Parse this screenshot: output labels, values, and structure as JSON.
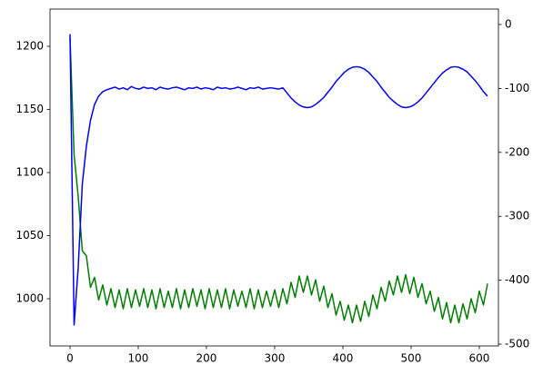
{
  "chart_data": {
    "type": "line",
    "x": [
      0,
      6,
      12,
      18,
      24,
      30,
      36,
      42,
      48,
      54,
      60,
      66,
      72,
      78,
      84,
      90,
      96,
      102,
      108,
      114,
      120,
      126,
      132,
      138,
      144,
      150,
      156,
      162,
      168,
      174,
      180,
      186,
      192,
      198,
      204,
      210,
      216,
      222,
      228,
      234,
      240,
      246,
      252,
      258,
      264,
      270,
      276,
      282,
      288,
      294,
      300,
      306,
      312,
      318,
      324,
      330,
      336,
      342,
      348,
      354,
      360,
      366,
      372,
      378,
      384,
      390,
      396,
      402,
      408,
      414,
      420,
      426,
      432,
      438,
      444,
      450,
      456,
      462,
      468,
      474,
      480,
      486,
      492,
      498,
      504,
      510,
      516,
      522,
      528,
      534,
      540,
      546,
      552,
      558,
      564,
      570,
      576,
      582,
      588,
      594,
      600,
      606,
      612
    ],
    "series": [
      {
        "name": "green",
        "color": "#008000",
        "axis": "y",
        "values": [
          1207,
          1114,
          1081,
          1038,
          1034,
          1009,
          1017,
          999,
          1011,
          995,
          1008,
          993,
          1007,
          992,
          1008,
          993,
          1007,
          994,
          1008,
          993,
          1007,
          992,
          1008,
          993,
          1006,
          993,
          1008,
          992,
          1007,
          993,
          1008,
          994,
          1007,
          992,
          1008,
          993,
          1007,
          993,
          1008,
          992,
          1007,
          994,
          1006,
          993,
          1008,
          992,
          1007,
          993,
          1006,
          994,
          1007,
          993,
          1008,
          996,
          1013,
          1001,
          1018,
          1005,
          1018,
          1003,
          1015,
          998,
          1010,
          993,
          1004,
          987,
          998,
          983,
          995,
          981,
          995,
          982,
          998,
          986,
          1003,
          992,
          1009,
          998,
          1014,
          1003,
          1018,
          1005,
          1019,
          1004,
          1017,
          1001,
          1012,
          996,
          1006,
          990,
          1001,
          984,
          997,
          981,
          995,
          981,
          996,
          984,
          1000,
          989,
          1006,
          995,
          1012
        ]
      },
      {
        "name": "blue",
        "color": "#0000ff",
        "axis": "y2",
        "values": [
          -15,
          -470,
          -380,
          -250,
          -190,
          -150,
          -125,
          -112,
          -105,
          -102,
          -100,
          -98,
          -101,
          -99,
          -102,
          -97,
          -100,
          -101,
          -98,
          -100,
          -99,
          -102,
          -98,
          -100,
          -101,
          -99,
          -98,
          -100,
          -102,
          -99,
          -100,
          -98,
          -101,
          -99,
          -100,
          -102,
          -98,
          -100,
          -99,
          -101,
          -100,
          -98,
          -100,
          -102,
          -99,
          -100,
          -98,
          -101,
          -100,
          -99,
          -100,
          -101,
          -99,
          -107,
          -115,
          -121,
          -126,
          -129,
          -130,
          -129,
          -125,
          -120,
          -114,
          -106,
          -98,
          -89,
          -82,
          -75,
          -70,
          -67,
          -66,
          -67,
          -70,
          -75,
          -82,
          -89,
          -98,
          -106,
          -114,
          -120,
          -125,
          -129,
          -130,
          -129,
          -126,
          -121,
          -115,
          -107,
          -99,
          -91,
          -83,
          -76,
          -71,
          -67,
          -66,
          -67,
          -70,
          -74,
          -81,
          -88,
          -96,
          -105,
          -112
        ]
      }
    ],
    "xlim": [
      -29.3,
      628
    ],
    "xticks": [
      0,
      100,
      200,
      300,
      400,
      500,
      600
    ],
    "ylim": [
      962.6,
      1229.5
    ],
    "yticks": [
      1000,
      1050,
      1100,
      1150,
      1200
    ],
    "y2lim": [
      -502.8,
      24.1
    ],
    "y2ticks": [
      -500,
      -400,
      -300,
      -200,
      -100,
      0
    ]
  }
}
